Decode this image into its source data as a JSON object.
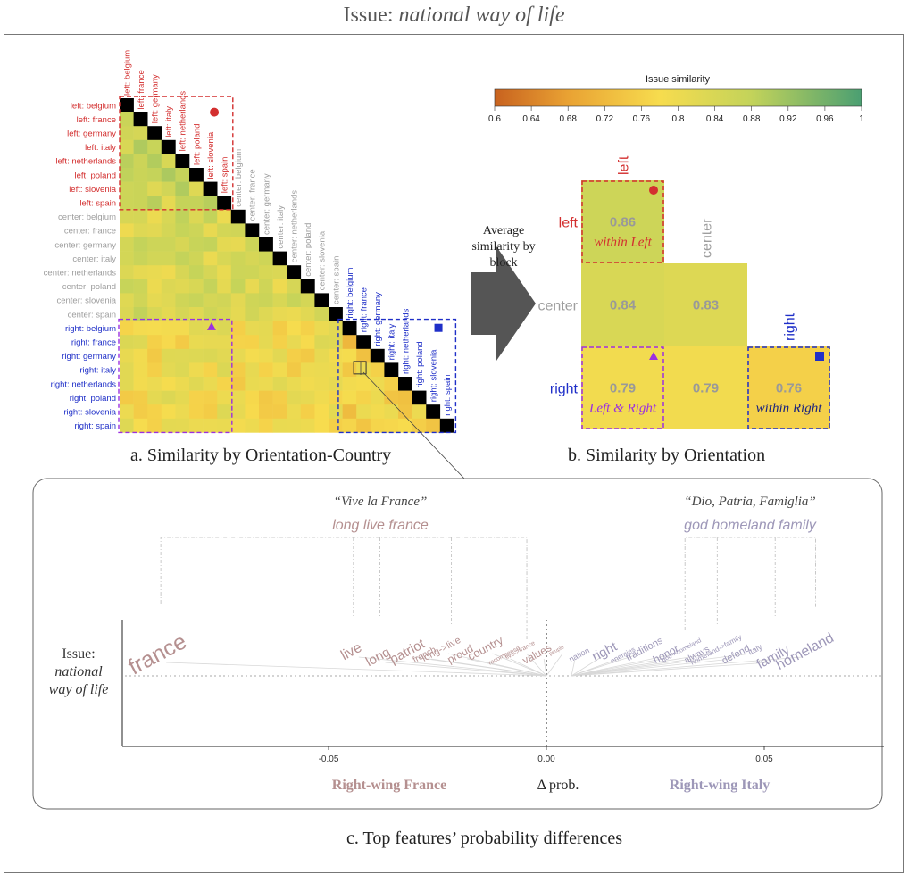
{
  "header": {
    "prefix": "Issue: ",
    "topic": "national way of life"
  },
  "colors": {
    "left": "#d32f2f",
    "center": "#9e9e9e",
    "right": "#1f2fc8",
    "mixed": "#9b30e0",
    "self": "#000000",
    "france_words": "#b59090",
    "italy_words": "#9d97b8"
  },
  "panel_a": {
    "caption": "a.   Similarity by Orientation-Country",
    "labels": [
      "left: belgium",
      "left: france",
      "left: germany",
      "left: italy",
      "left: netherlands",
      "left: poland",
      "left: slovenia",
      "left: spain",
      "center: belgium",
      "center: france",
      "center: germany",
      "center: italy",
      "center: netherlands",
      "center: poland",
      "center: slovenia",
      "center: spain",
      "right: belgium",
      "right: france",
      "right: germany",
      "right: italy",
      "right: netherlands",
      "right: poland",
      "right: slovenia",
      "right: spain"
    ],
    "pattern_block_means": [
      [
        0.86,
        0.84,
        0.79
      ],
      [
        0.84,
        0.83,
        0.79
      ],
      [
        0.79,
        0.79,
        0.76
      ]
    ]
  },
  "colorbar": {
    "title": "Issue similarity",
    "ticks": [
      "0.6",
      "0.64",
      "0.68",
      "0.72",
      "0.76",
      "0.8",
      "0.84",
      "0.88",
      "0.92",
      "0.96",
      "1"
    ],
    "min": 0.6,
    "max": 1.0,
    "stops": [
      "#c8621f",
      "#e9a233",
      "#f7dc4e",
      "#c3d35a",
      "#4b9f72"
    ]
  },
  "arrow": {
    "label_lines": [
      "Average",
      "similarity by",
      "block"
    ]
  },
  "panel_b": {
    "caption": "b.   Similarity by Orientation",
    "groups": [
      "left",
      "center",
      "right"
    ],
    "cells": [
      {
        "row": 0,
        "col": 0,
        "value": "0.86",
        "sub": "within Left",
        "marker": "circle"
      },
      {
        "row": 1,
        "col": 0,
        "value": "0.84"
      },
      {
        "row": 1,
        "col": 1,
        "value": "0.83"
      },
      {
        "row": 2,
        "col": 0,
        "value": "0.79",
        "sub": "Left & Right",
        "marker": "triangle"
      },
      {
        "row": 2,
        "col": 1,
        "value": "0.79"
      },
      {
        "row": 2,
        "col": 2,
        "value": "0.76",
        "sub": "within Right",
        "marker": "square"
      }
    ]
  },
  "panel_c": {
    "caption": "c.   Top features’ probability differences",
    "y_label_lines": [
      "Issue:",
      "national",
      "way of life"
    ],
    "x_ticks": [
      {
        "value": -0.05,
        "label": "-0.05"
      },
      {
        "value": 0.0,
        "label": "0.00"
      },
      {
        "value": 0.05,
        "label": "0.05"
      }
    ],
    "x_label": "Δ prob.",
    "left_group": "Right-wing France",
    "right_group": "Right-wing Italy",
    "callout_france": {
      "quote": "“Vive la France”",
      "translation": "long live france"
    },
    "callout_italy": {
      "quote": "“Dio, Patria, Famiglia”",
      "translation": "god homeland family"
    },
    "chart_data": {
      "type": "scatter",
      "xlabel": "Δ prob.",
      "xlim": [
        -0.098,
        0.077
      ],
      "words": [
        {
          "w": "france",
          "x": -0.0885,
          "size": 25,
          "side": "fr"
        },
        {
          "w": "live",
          "x": -0.0443,
          "size": 16,
          "side": "fr"
        },
        {
          "w": "long",
          "x": -0.0382,
          "size": 15,
          "side": "fr"
        },
        {
          "w": "patriot",
          "x": -0.0315,
          "size": 15,
          "side": "fr"
        },
        {
          "w": "french",
          "x": -0.0277,
          "size": 10,
          "side": "fr"
        },
        {
          "w": "long->live",
          "x": -0.0238,
          "size": 11,
          "side": "fr"
        },
        {
          "w": "proud",
          "x": -0.0194,
          "size": 12,
          "side": "fr"
        },
        {
          "w": "country",
          "x": -0.0136,
          "size": 13,
          "side": "fr"
        },
        {
          "w": "recompensé",
          "x": -0.0095,
          "size": 7,
          "side": "fr"
        },
        {
          "w": "live->france",
          "x": -0.0058,
          "size": 7,
          "side": "fr"
        },
        {
          "w": "values",
          "x": -0.0018,
          "size": 12,
          "side": "fr"
        },
        {
          "w": "peuple",
          "x": 0.0025,
          "size": 6,
          "side": "fr"
        },
        {
          "w": "nation",
          "x": 0.0078,
          "size": 9,
          "side": "it"
        },
        {
          "w": "right",
          "x": 0.0138,
          "size": 15,
          "side": "it"
        },
        {
          "w": "enemies",
          "x": 0.0178,
          "size": 8,
          "side": "it"
        },
        {
          "w": "traditions",
          "x": 0.0228,
          "size": 11,
          "side": "it"
        },
        {
          "w": "honor",
          "x": 0.0278,
          "size": 12,
          "side": "it"
        },
        {
          "w": "god->homeland",
          "x": 0.0312,
          "size": 7,
          "side": "it"
        },
        {
          "w": "always",
          "x": 0.0348,
          "size": 10,
          "side": "it"
        },
        {
          "w": "homeland->family",
          "x": 0.0392,
          "size": 8,
          "side": "it"
        },
        {
          "w": "defend",
          "x": 0.0438,
          "size": 11,
          "side": "it"
        },
        {
          "w": "italy",
          "x": 0.0482,
          "size": 9,
          "side": "it"
        },
        {
          "w": "family",
          "x": 0.0525,
          "size": 15,
          "side": "it"
        },
        {
          "w": "homeland",
          "x": 0.0598,
          "size": 16,
          "side": "it"
        }
      ]
    }
  }
}
